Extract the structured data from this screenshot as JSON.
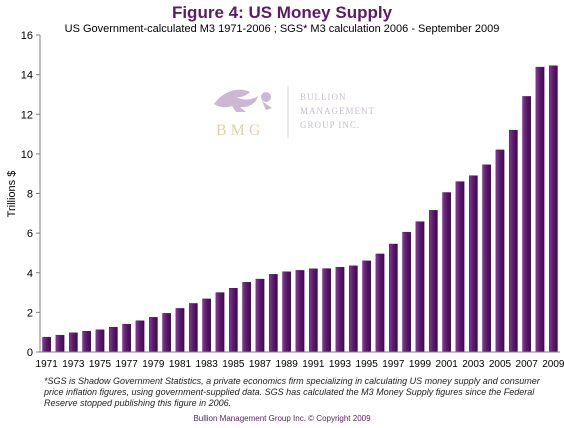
{
  "chart_data": {
    "type": "bar",
    "title": "Figure 4: US Money Supply",
    "subtitle": "US Government-calculated M3 1971-2006 ; SGS* M3 calculation 2006 - September 2009",
    "xlabel": "",
    "ylabel": "Trillions $",
    "ylim": [
      0,
      16
    ],
    "yticks": [
      0,
      2,
      4,
      6,
      8,
      10,
      12,
      14,
      16
    ],
    "grid": false,
    "x": [
      1971,
      1972,
      1973,
      1974,
      1975,
      1976,
      1977,
      1978,
      1979,
      1980,
      1981,
      1982,
      1983,
      1984,
      1985,
      1986,
      1987,
      1988,
      1989,
      1990,
      1991,
      1992,
      1993,
      1994,
      1995,
      1996,
      1997,
      1998,
      1999,
      2000,
      2001,
      2002,
      2003,
      2004,
      2005,
      2006,
      2007,
      2008,
      2009
    ],
    "xtick_labels": [
      "1971",
      "1973",
      "1975",
      "1977",
      "1979",
      "1981",
      "1983",
      "1985",
      "1987",
      "1989",
      "1991",
      "1993",
      "1995",
      "1997",
      "1999",
      "2001",
      "2003",
      "2005",
      "2007",
      "2009"
    ],
    "values": [
      0.75,
      0.85,
      0.97,
      1.05,
      1.12,
      1.25,
      1.4,
      1.58,
      1.75,
      1.95,
      2.2,
      2.45,
      2.68,
      3.0,
      3.22,
      3.52,
      3.68,
      3.92,
      4.05,
      4.12,
      4.2,
      4.21,
      4.28,
      4.35,
      4.6,
      4.95,
      5.45,
      6.05,
      6.58,
      7.15,
      8.05,
      8.6,
      8.9,
      9.45,
      10.2,
      11.2,
      12.9,
      14.38,
      14.45
    ],
    "bar_color": "#5e1a70"
  },
  "logo": {
    "initials": "BMG",
    "line1": "BULLION",
    "line2": "MANAGEMENT",
    "line3": "GROUP INC."
  },
  "footnote": "*SGS is Shadow Government Statistics, a private economics firm specializing in calculating US money supply and consumer price inflation figures, using government-supplied data. SGS has calculated the M3 Money Supply figures since the Federal Reserve stopped publishing this figure in 2006.",
  "copyright": "Bullion Management Group Inc. © Copyright 2009"
}
